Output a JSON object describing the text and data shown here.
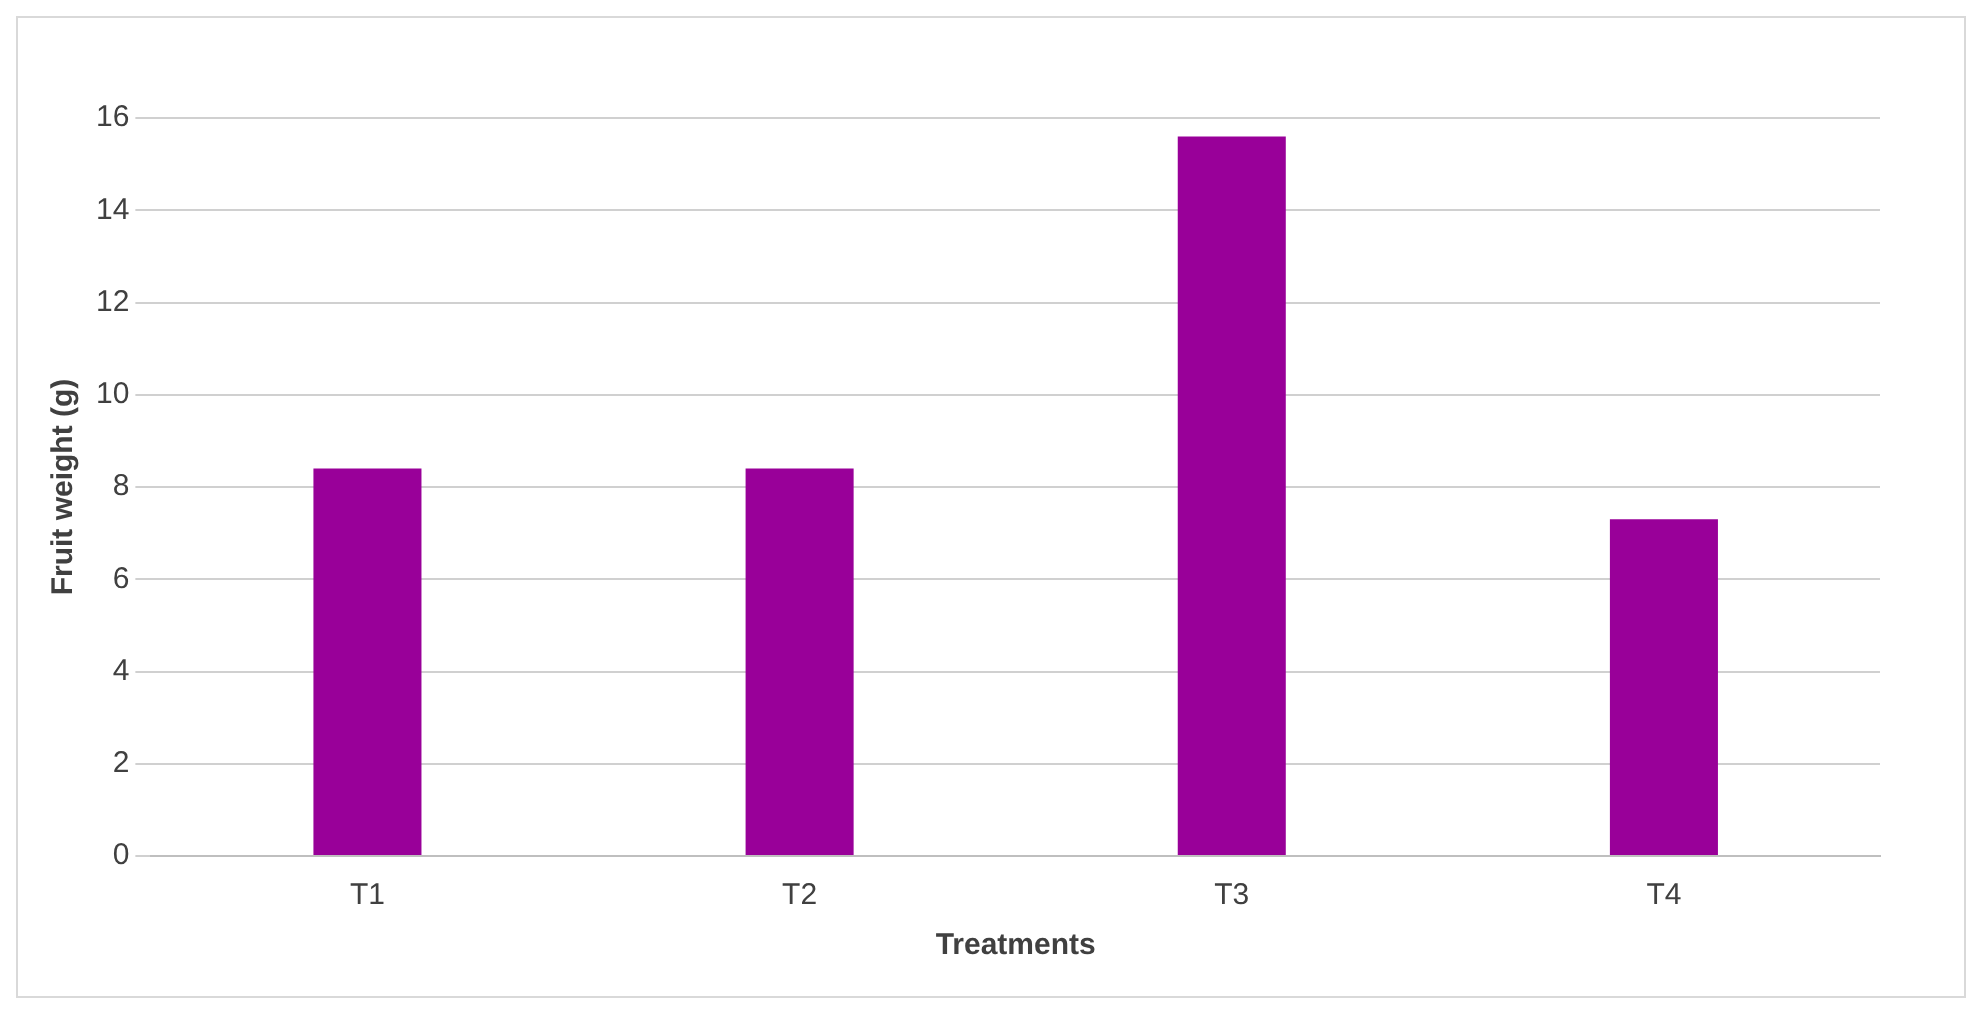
{
  "chart_data": {
    "type": "bar",
    "xlabel": "Treatments",
    "ylabel": "Fruit weight (g)",
    "categories": [
      "T1",
      "T2",
      "T3",
      "T4"
    ],
    "values": [
      8.4,
      8.4,
      15.6,
      7.3
    ],
    "color": "#990099",
    "ylim": [
      0,
      16
    ],
    "yticks": [
      0,
      2,
      4,
      6,
      8,
      10,
      12,
      14,
      16
    ],
    "grid": "y"
  }
}
